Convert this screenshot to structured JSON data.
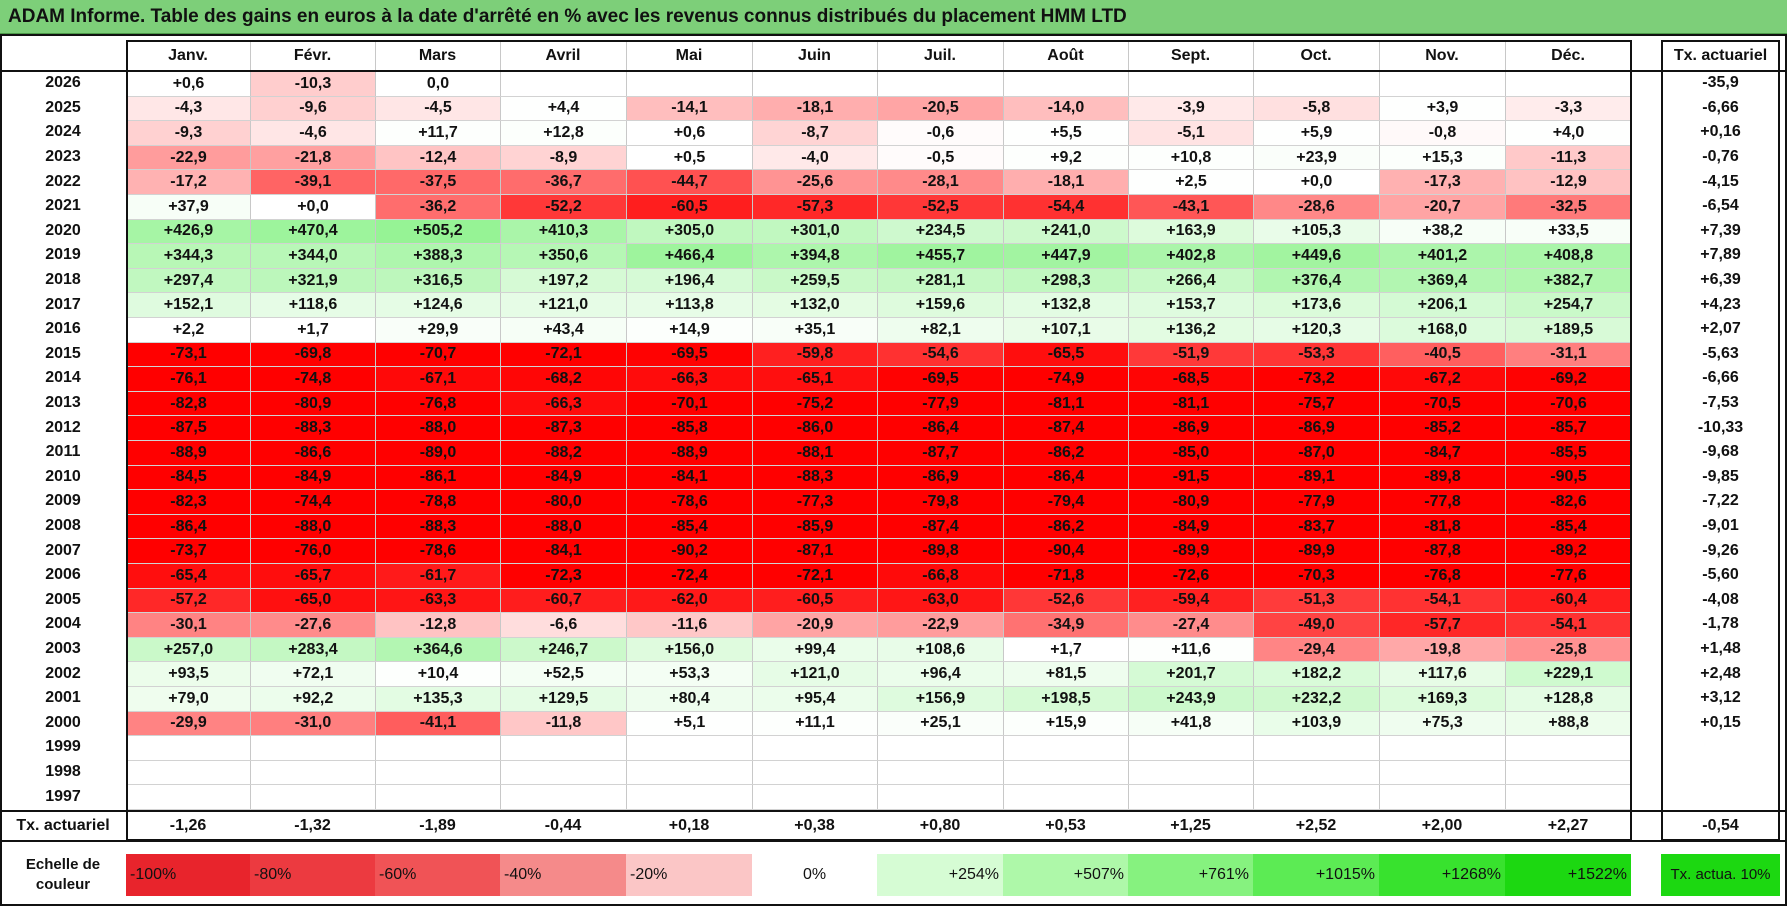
{
  "title": "ADAM Informe. Table des gains en euros à la date d'arrêté en % avec les revenus connus distribués du placement HMM LTD",
  "months": [
    "Janv.",
    "Févr.",
    "Mars",
    "Avril",
    "Mai",
    "Juin",
    "Juil.",
    "Août",
    "Sept.",
    "Oct.",
    "Nov.",
    "Déc."
  ],
  "rate_header": "Tx. actuariel",
  "rows": [
    {
      "year": "2026",
      "values": [
        "+0,6",
        "-10,3",
        "0,0",
        "",
        "",
        "",
        "",
        "",
        "",
        "",
        "",
        ""
      ],
      "rate": "-35,9"
    },
    {
      "year": "2025",
      "values": [
        "-4,3",
        "-9,6",
        "-4,5",
        "+4,4",
        "-14,1",
        "-18,1",
        "-20,5",
        "-14,0",
        "-3,9",
        "-5,8",
        "+3,9",
        "-3,3"
      ],
      "rate": "-6,66"
    },
    {
      "year": "2024",
      "values": [
        "-9,3",
        "-4,6",
        "+11,7",
        "+12,8",
        "+0,6",
        "-8,7",
        "-0,6",
        "+5,5",
        "-5,1",
        "+5,9",
        "-0,8",
        "+4,0"
      ],
      "rate": "+0,16"
    },
    {
      "year": "2023",
      "values": [
        "-22,9",
        "-21,8",
        "-12,4",
        "-8,9",
        "+0,5",
        "-4,0",
        "-0,5",
        "+9,2",
        "+10,8",
        "+23,9",
        "+15,3",
        "-11,3"
      ],
      "rate": "-0,76"
    },
    {
      "year": "2022",
      "values": [
        "-17,2",
        "-39,1",
        "-37,5",
        "-36,7",
        "-44,7",
        "-25,6",
        "-28,1",
        "-18,1",
        "+2,5",
        "+0,0",
        "-17,3",
        "-12,9"
      ],
      "rate": "-4,15"
    },
    {
      "year": "2021",
      "values": [
        "+37,9",
        "+0,0",
        "-36,2",
        "-52,2",
        "-60,5",
        "-57,3",
        "-52,5",
        "-54,4",
        "-43,1",
        "-28,6",
        "-20,7",
        "-32,5"
      ],
      "rate": "-6,54"
    },
    {
      "year": "2020",
      "values": [
        "+426,9",
        "+470,4",
        "+505,2",
        "+410,3",
        "+305,0",
        "+301,0",
        "+234,5",
        "+241,0",
        "+163,9",
        "+105,3",
        "+38,2",
        "+33,5"
      ],
      "rate": "+7,39"
    },
    {
      "year": "2019",
      "values": [
        "+344,3",
        "+344,0",
        "+388,3",
        "+350,6",
        "+466,4",
        "+394,8",
        "+455,7",
        "+447,9",
        "+402,8",
        "+449,6",
        "+401,2",
        "+408,8"
      ],
      "rate": "+7,89"
    },
    {
      "year": "2018",
      "values": [
        "+297,4",
        "+321,9",
        "+316,5",
        "+197,2",
        "+196,4",
        "+259,5",
        "+281,1",
        "+298,3",
        "+266,4",
        "+376,4",
        "+369,4",
        "+382,7"
      ],
      "rate": "+6,39"
    },
    {
      "year": "2017",
      "values": [
        "+152,1",
        "+118,6",
        "+124,6",
        "+121,0",
        "+113,8",
        "+132,0",
        "+159,6",
        "+132,8",
        "+153,7",
        "+173,6",
        "+206,1",
        "+254,7"
      ],
      "rate": "+4,23"
    },
    {
      "year": "2016",
      "values": [
        "+2,2",
        "+1,7",
        "+29,9",
        "+43,4",
        "+14,9",
        "+35,1",
        "+82,1",
        "+107,1",
        "+136,2",
        "+120,3",
        "+168,0",
        "+189,5"
      ],
      "rate": "+2,07"
    },
    {
      "year": "2015",
      "values": [
        "-73,1",
        "-69,8",
        "-70,7",
        "-72,1",
        "-69,5",
        "-59,8",
        "-54,6",
        "-65,5",
        "-51,9",
        "-53,3",
        "-40,5",
        "-31,1"
      ],
      "rate": "-5,63"
    },
    {
      "year": "2014",
      "values": [
        "-76,1",
        "-74,8",
        "-67,1",
        "-68,2",
        "-66,3",
        "-65,1",
        "-69,5",
        "-74,9",
        "-68,5",
        "-73,2",
        "-67,2",
        "-69,2"
      ],
      "rate": "-6,66"
    },
    {
      "year": "2013",
      "values": [
        "-82,8",
        "-80,9",
        "-76,8",
        "-66,3",
        "-70,1",
        "-75,2",
        "-77,9",
        "-81,1",
        "-81,1",
        "-75,7",
        "-70,5",
        "-70,6"
      ],
      "rate": "-7,53"
    },
    {
      "year": "2012",
      "values": [
        "-87,5",
        "-88,3",
        "-88,0",
        "-87,3",
        "-85,8",
        "-86,0",
        "-86,4",
        "-87,4",
        "-86,9",
        "-86,9",
        "-85,2",
        "-85,7"
      ],
      "rate": "-10,33"
    },
    {
      "year": "2011",
      "values": [
        "-88,9",
        "-86,6",
        "-89,0",
        "-88,2",
        "-88,9",
        "-88,1",
        "-87,7",
        "-86,2",
        "-85,0",
        "-87,0",
        "-84,7",
        "-85,5"
      ],
      "rate": "-9,68"
    },
    {
      "year": "2010",
      "values": [
        "-84,5",
        "-84,9",
        "-86,1",
        "-84,9",
        "-84,1",
        "-88,3",
        "-86,9",
        "-86,4",
        "-91,5",
        "-89,1",
        "-89,8",
        "-90,5"
      ],
      "rate": "-9,85"
    },
    {
      "year": "2009",
      "values": [
        "-82,3",
        "-74,4",
        "-78,8",
        "-80,0",
        "-78,6",
        "-77,3",
        "-79,8",
        "-79,4",
        "-80,9",
        "-77,9",
        "-77,8",
        "-82,6"
      ],
      "rate": "-7,22"
    },
    {
      "year": "2008",
      "values": [
        "-86,4",
        "-88,0",
        "-88,3",
        "-88,0",
        "-85,4",
        "-85,9",
        "-87,4",
        "-86,2",
        "-84,9",
        "-83,7",
        "-81,8",
        "-85,4"
      ],
      "rate": "-9,01"
    },
    {
      "year": "2007",
      "values": [
        "-73,7",
        "-76,0",
        "-78,6",
        "-84,1",
        "-90,2",
        "-87,1",
        "-89,8",
        "-90,4",
        "-89,9",
        "-89,9",
        "-87,8",
        "-89,2"
      ],
      "rate": "-9,26"
    },
    {
      "year": "2006",
      "values": [
        "-65,4",
        "-65,7",
        "-61,7",
        "-72,3",
        "-72,4",
        "-72,1",
        "-66,8",
        "-71,8",
        "-72,6",
        "-70,3",
        "-76,8",
        "-77,6"
      ],
      "rate": "-5,60"
    },
    {
      "year": "2005",
      "values": [
        "-57,2",
        "-65,0",
        "-63,3",
        "-60,7",
        "-62,0",
        "-60,5",
        "-63,0",
        "-52,6",
        "-59,4",
        "-51,3",
        "-54,1",
        "-60,4"
      ],
      "rate": "-4,08"
    },
    {
      "year": "2004",
      "values": [
        "-30,1",
        "-27,6",
        "-12,8",
        "-6,6",
        "-11,6",
        "-20,9",
        "-22,9",
        "-34,9",
        "-27,4",
        "-49,0",
        "-57,7",
        "-54,1"
      ],
      "rate": "-1,78"
    },
    {
      "year": "2003",
      "values": [
        "+257,0",
        "+283,4",
        "+364,6",
        "+246,7",
        "+156,0",
        "+99,4",
        "+108,6",
        "+1,7",
        "+11,6",
        "-29,4",
        "-19,8",
        "-25,8"
      ],
      "rate": "+1,48"
    },
    {
      "year": "2002",
      "values": [
        "+93,5",
        "+72,1",
        "+10,4",
        "+52,5",
        "+53,3",
        "+121,0",
        "+96,4",
        "+81,5",
        "+201,7",
        "+182,2",
        "+117,6",
        "+229,1"
      ],
      "rate": "+2,48"
    },
    {
      "year": "2001",
      "values": [
        "+79,0",
        "+92,2",
        "+135,3",
        "+129,5",
        "+80,4",
        "+95,4",
        "+156,9",
        "+198,5",
        "+243,9",
        "+232,2",
        "+169,3",
        "+128,8"
      ],
      "rate": "+3,12"
    },
    {
      "year": "2000",
      "values": [
        "-29,9",
        "-31,0",
        "-41,1",
        "-11,8",
        "+5,1",
        "+11,1",
        "+25,1",
        "+15,9",
        "+41,8",
        "+103,9",
        "+75,3",
        "+88,8"
      ],
      "rate": "+0,15"
    },
    {
      "year": "1999",
      "values": [
        "",
        "",
        "",
        "",
        "",
        "",
        "",
        "",
        "",
        "",
        "",
        ""
      ],
      "rate": ""
    },
    {
      "year": "1998",
      "values": [
        "",
        "",
        "",
        "",
        "",
        "",
        "",
        "",
        "",
        "",
        "",
        ""
      ],
      "rate": ""
    },
    {
      "year": "1997",
      "values": [
        "",
        "",
        "",
        "",
        "",
        "",
        "",
        "",
        "",
        "",
        "",
        ""
      ],
      "rate": ""
    }
  ],
  "footer": {
    "label": "Tx. actuariel",
    "values": [
      "-1,26",
      "-1,32",
      "-1,89",
      "-0,44",
      "+0,18",
      "+0,38",
      "+0,80",
      "+0,53",
      "+1,25",
      "+2,52",
      "+2,00",
      "+2,27"
    ],
    "rate": "-0,54"
  },
  "legend": {
    "label": "Echelle de couleur",
    "items": [
      {
        "text": "-100%",
        "color": "#e8242c"
      },
      {
        "text": "-80%",
        "color": "#ec3a40"
      },
      {
        "text": "-60%",
        "color": "#f05356"
      },
      {
        "text": "-40%",
        "color": "#f58a8a"
      },
      {
        "text": "-20%",
        "color": "#fbc6c6"
      },
      {
        "text": "0%",
        "color": "#ffffff"
      },
      {
        "text": "+254%",
        "color": "#d6fcd4"
      },
      {
        "text": "+507%",
        "color": "#aef8a9"
      },
      {
        "text": "+761%",
        "color": "#86f27f"
      },
      {
        "text": "+1015%",
        "color": "#5ceb54"
      },
      {
        "text": "+1268%",
        "color": "#38e22e"
      },
      {
        "text": "+1522%",
        "color": "#1cd811"
      }
    ],
    "rate_text": "Tx. actua. 10%",
    "rate_color": "#1cd811"
  },
  "colors": {
    "title_bg": "#7dcf79",
    "deep_red": "#ff0000",
    "positive_green": "#7cf07a"
  }
}
